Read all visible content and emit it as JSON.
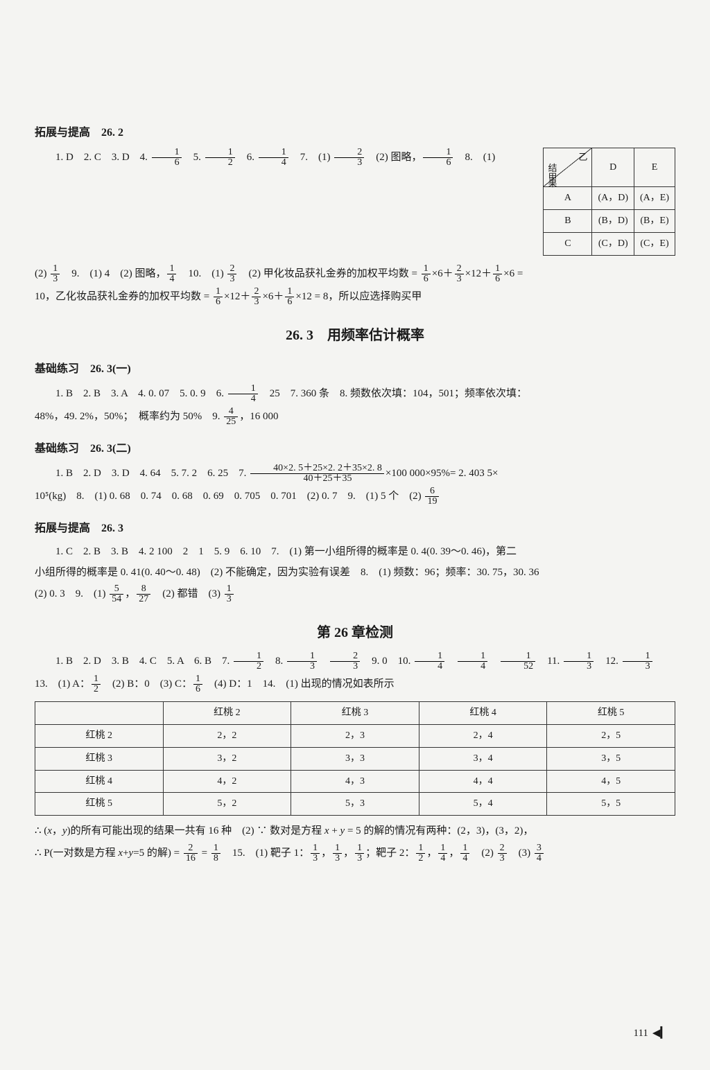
{
  "page_number": "111",
  "sections": {
    "s1": {
      "title": "拓展与提高　26. 2"
    },
    "s2": {
      "title": "基础练习　26. 3(一)"
    },
    "s3": {
      "title": "基础练习　26. 3(二)"
    },
    "s4": {
      "title": "拓展与提高　26. 3"
    }
  },
  "main_titles": {
    "t1": "26. 3　用频率估计概率",
    "t2": "第 26 章检测"
  },
  "lines": {
    "l1a": "1. D　2. C　3. D　4. ",
    "l1b": "　5. ",
    "l1c": "　6. ",
    "l1d": "　7.　(1) ",
    "l1e": "　(2) 图略，",
    "l1f": "　8.　(1)",
    "l2a": "(2) ",
    "l2b": "　9.　(1) 4　(2) 图略，",
    "l2c": "　10.　(1) ",
    "l2d": "　(2) 甲化妆品获礼金券的加权平均数 = ",
    "l2e": "×6＋",
    "l2f": "×12＋",
    "l2g": "×6 =",
    "l3a": "10，乙化妆品获礼金券的加权平均数 = ",
    "l3b": "×12＋",
    "l3c": "×6＋",
    "l3d": "×12 = 8，所以应选择购买甲",
    "l4a": "1. B　2. B　3. A　4. 0. 07　5. 0. 9　6. ",
    "l4b": "　25　7. 360 条　8. 频数依次填：104，501；频率依次填：",
    "l5a": "48%，49. 2%，50%；　概率约为 50%　9. ",
    "l5b": "，16 000",
    "l6a": "1. B　2. D　3. D　4. 64　5. 7. 2　6. 25　7. ",
    "l6b": "×100 000×95%= 2. 403 5×",
    "l7a": "10⁵(kg)　8.　(1) 0. 68　0. 74　0. 68　0. 69　0. 705　0. 701　(2) 0. 7　9.　(1) 5 个　(2) ",
    "l8a": "1. C　2. B　3. B　4. 2 100　2　1　5. 9　6. 10　7.　(1) 第一小组所得的概率是 0. 4(0. 39～0. 46)，第二",
    "l8b": "小组所得的概率是 0. 41(0. 40～0. 48)　(2) 不能确定，因为实验有误差　8.　(1) 频数：96；频率：30. 75，30. 36",
    "l8c": "(2) 0. 3　9.　(1) ",
    "l8d": "，",
    "l8e": "　(2) 都错　(3) ",
    "l9a": "1. B　2. D　3. B　4. C　5. A　6. B　7. ",
    "l9b": "　8. ",
    "l9c": "　",
    "l9d": "　9. 0　10. ",
    "l9e": "　",
    "l9f": "　",
    "l9g": "　11. ",
    "l9h": "　12. ",
    "l10a": "13.　(1) A：",
    "l10b": "　(2) B：0　(3) C：",
    "l10c": "　(4) D：1　14.　(1) 出现的情况如表所示",
    "l11a": "∴ (",
    "l11b": "，",
    "l11c": ")的所有可能出现的结果一共有 16 种　(2) ∵ 数对是方程 ",
    "l11d": " + ",
    "l11e": " = 5 的解的情况有两种：(2，3)，(3，2)，",
    "l12a": "∴ P(一对数是方程 ",
    "l12b": "+",
    "l12c": "=5 的解) = ",
    "l12d": " = ",
    "l12e": "　15.　(1) 靶子 1：",
    "l12f": "，",
    "l12g": "，",
    "l12h": "；靶子 2：",
    "l12i": "，",
    "l12j": "，",
    "l12k": "　(2) ",
    "l12l": "　(3) "
  },
  "fractions": {
    "f1": {
      "num": "1",
      "den": "6"
    },
    "f2": {
      "num": "1",
      "den": "2"
    },
    "f3": {
      "num": "1",
      "den": "4"
    },
    "f4": {
      "num": "2",
      "den": "3"
    },
    "f5": {
      "num": "1",
      "den": "6"
    },
    "f6": {
      "num": "1",
      "den": "3"
    },
    "f7": {
      "num": "1",
      "den": "4"
    },
    "f8": {
      "num": "2",
      "den": "3"
    },
    "f9": {
      "num": "1",
      "den": "6"
    },
    "f10": {
      "num": "2",
      "den": "3"
    },
    "f11": {
      "num": "1",
      "den": "6"
    },
    "f12": {
      "num": "1",
      "den": "6"
    },
    "f13": {
      "num": "2",
      "den": "3"
    },
    "f14": {
      "num": "1",
      "den": "6"
    },
    "f15": {
      "num": "1",
      "den": "4"
    },
    "f16": {
      "num": "4",
      "den": "25"
    },
    "f17": {
      "num": "40×2. 5＋25×2. 2＋35×2. 8",
      "den": "40＋25＋35"
    },
    "f18": {
      "num": "6",
      "den": "19"
    },
    "f19": {
      "num": "5",
      "den": "54"
    },
    "f20": {
      "num": "8",
      "den": "27"
    },
    "f21": {
      "num": "1",
      "den": "3"
    },
    "f22": {
      "num": "1",
      "den": "2"
    },
    "f23": {
      "num": "1",
      "den": "3"
    },
    "f24": {
      "num": "2",
      "den": "3"
    },
    "f25": {
      "num": "1",
      "den": "4"
    },
    "f26": {
      "num": "1",
      "den": "4"
    },
    "f27": {
      "num": "1",
      "den": "52"
    },
    "f28": {
      "num": "1",
      "den": "3"
    },
    "f29": {
      "num": "1",
      "den": "3"
    },
    "f30": {
      "num": "1",
      "den": "2"
    },
    "f31": {
      "num": "1",
      "den": "6"
    },
    "f32": {
      "num": "2",
      "den": "16"
    },
    "f33": {
      "num": "1",
      "den": "8"
    },
    "f34": {
      "num": "1",
      "den": "3"
    },
    "f35": {
      "num": "1",
      "den": "3"
    },
    "f36": {
      "num": "1",
      "den": "3"
    },
    "f37": {
      "num": "1",
      "den": "2"
    },
    "f38": {
      "num": "1",
      "den": "4"
    },
    "f39": {
      "num": "1",
      "den": "4"
    },
    "f40": {
      "num": "2",
      "den": "3"
    },
    "f41": {
      "num": "3",
      "den": "4"
    }
  },
  "vars": {
    "x": "x",
    "y": "y"
  },
  "table1": {
    "diag": {
      "top": "乙",
      "mid": "结\n果",
      "bot": "甲"
    },
    "cols": [
      "D",
      "E"
    ],
    "rows": [
      {
        "label": "A",
        "cells": [
          "(A，D)",
          "(A，E)"
        ]
      },
      {
        "label": "B",
        "cells": [
          "(B，D)",
          "(B，E)"
        ]
      },
      {
        "label": "C",
        "cells": [
          "(C，D)",
          "(C，E)"
        ]
      }
    ]
  },
  "table2": {
    "headers": [
      "",
      "红桃 2",
      "红桃 3",
      "红桃 4",
      "红桃 5"
    ],
    "rows": [
      [
        "红桃 2",
        "2，2",
        "2，3",
        "2，4",
        "2，5"
      ],
      [
        "红桃 3",
        "3，2",
        "3，3",
        "3，4",
        "3，5"
      ],
      [
        "红桃 4",
        "4，2",
        "4，3",
        "4，4",
        "4，5"
      ],
      [
        "红桃 5",
        "5，2",
        "5，3",
        "5，4",
        "5，5"
      ]
    ]
  },
  "colors": {
    "page_bg": "#f4f4f2",
    "text": "#1a1a1a",
    "border": "#333333"
  }
}
